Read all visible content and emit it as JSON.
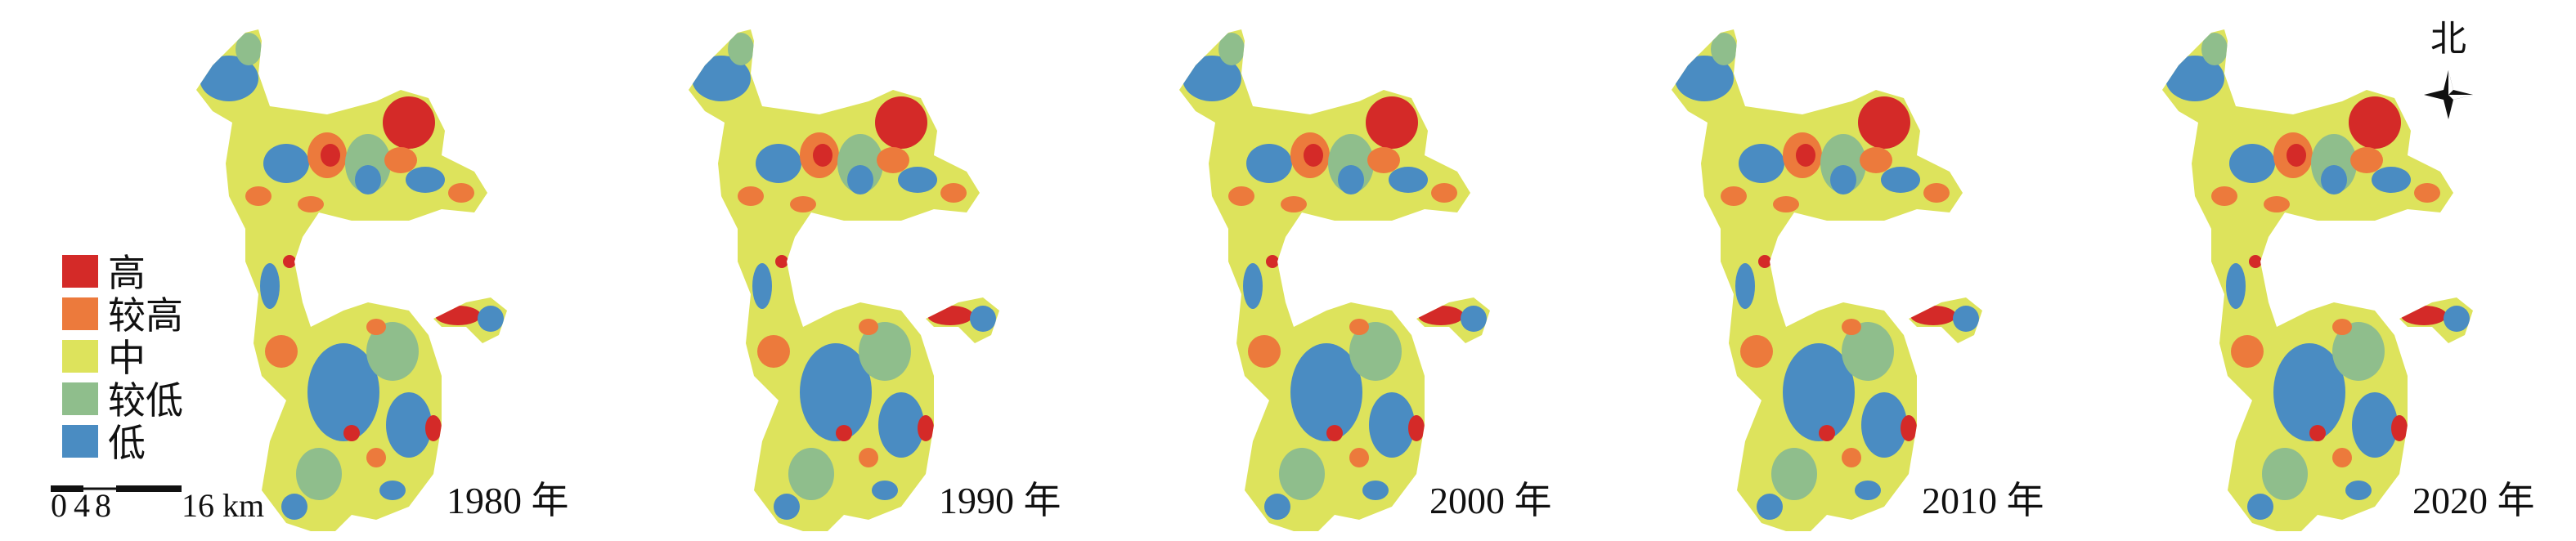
{
  "legend": {
    "items": [
      {
        "label": "高",
        "color": "#d42a28"
      },
      {
        "label": "较高",
        "color": "#ec7a3c"
      },
      {
        "label": "中",
        "color": "#dde35c"
      },
      {
        "label": "较低",
        "color": "#8fbe8c"
      },
      {
        "label": "低",
        "color": "#4a8cc2"
      }
    ]
  },
  "panels": [
    {
      "year": "1980 年"
    },
    {
      "year": "1990 年"
    },
    {
      "year": "2000 年"
    },
    {
      "year": "2010 年"
    },
    {
      "year": "2020 年"
    }
  ],
  "scale_bar": {
    "labels": [
      "0",
      "4",
      "8",
      "16 km"
    ]
  },
  "north": "北"
}
